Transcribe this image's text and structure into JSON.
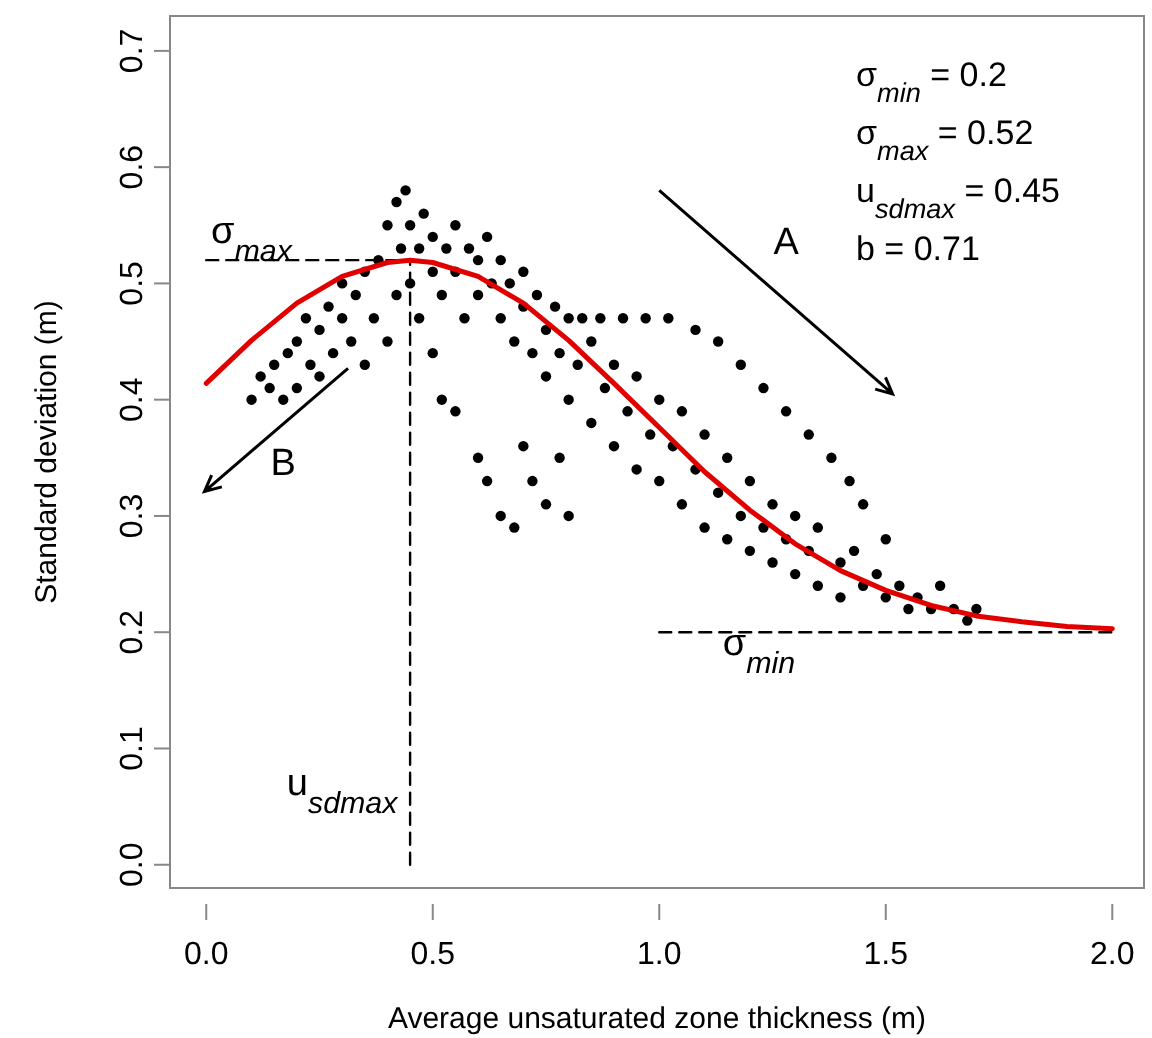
{
  "chart_data": {
    "type": "scatter",
    "xlabel": "Average unsaturated zone thickness (m)",
    "ylabel": "Standard deviation (m)",
    "xlim": [
      -0.08,
      2.07
    ],
    "ylim": [
      -0.02,
      0.73
    ],
    "xticks": [
      {
        "value": 0,
        "label": "0.0"
      },
      {
        "value": 0.5,
        "label": "0.5"
      },
      {
        "value": 1,
        "label": "1.0"
      },
      {
        "value": 1.5,
        "label": "1.5"
      },
      {
        "value": 2,
        "label": "2.0"
      }
    ],
    "yticks": [
      {
        "value": 0,
        "label": "0.0"
      },
      {
        "value": 0.1,
        "label": "0.1"
      },
      {
        "value": 0.2,
        "label": "0.2"
      },
      {
        "value": 0.3,
        "label": "0.3"
      },
      {
        "value": 0.4,
        "label": "0.4"
      },
      {
        "value": 0.5,
        "label": "0.5"
      },
      {
        "value": 0.6,
        "label": "0.6"
      },
      {
        "value": 0.7,
        "label": "0.7"
      }
    ],
    "grid": false,
    "series": [
      {
        "color": "#000000",
        "marker": "circle",
        "x": [
          0.1,
          0.12,
          0.14,
          0.15,
          0.17,
          0.18,
          0.2,
          0.2,
          0.22,
          0.23,
          0.25,
          0.25,
          0.27,
          0.28,
          0.3,
          0.3,
          0.32,
          0.33,
          0.35,
          0.35,
          0.37,
          0.38,
          0.4,
          0.4,
          0.42,
          0.42,
          0.43,
          0.44,
          0.45,
          0.45,
          0.47,
          0.47,
          0.48,
          0.5,
          0.5,
          0.52,
          0.53,
          0.55,
          0.55,
          0.57,
          0.58,
          0.6,
          0.6,
          0.62,
          0.63,
          0.65,
          0.65,
          0.67,
          0.68,
          0.7,
          0.7,
          0.72,
          0.73,
          0.75,
          0.75,
          0.77,
          0.78,
          0.8,
          0.8,
          0.82,
          0.83,
          0.85,
          0.85,
          0.87,
          0.88,
          0.9,
          0.9,
          0.92,
          0.93,
          0.95,
          0.95,
          0.97,
          0.98,
          1.0,
          1.0,
          1.02,
          1.03,
          1.05,
          1.05,
          1.08,
          1.08,
          1.1,
          1.1,
          1.13,
          1.13,
          1.15,
          1.15,
          1.18,
          1.18,
          1.2,
          1.2,
          1.23,
          1.23,
          1.25,
          1.25,
          1.28,
          1.28,
          1.3,
          1.3,
          1.33,
          1.33,
          1.35,
          1.35,
          1.38,
          1.4,
          1.4,
          1.42,
          1.43,
          1.45,
          1.45,
          1.48,
          1.5,
          1.5,
          1.53,
          1.55,
          1.57,
          1.6,
          1.62,
          1.65,
          1.68,
          1.7,
          0.6,
          0.62,
          0.65,
          0.68,
          0.7,
          0.72,
          0.75,
          0.78,
          0.8,
          0.55,
          0.5,
          0.52
        ],
        "values": [
          0.4,
          0.42,
          0.41,
          0.43,
          0.4,
          0.44,
          0.45,
          0.41,
          0.47,
          0.43,
          0.46,
          0.42,
          0.48,
          0.44,
          0.47,
          0.5,
          0.45,
          0.49,
          0.43,
          0.51,
          0.47,
          0.52,
          0.45,
          0.55,
          0.49,
          0.57,
          0.53,
          0.58,
          0.5,
          0.55,
          0.47,
          0.53,
          0.56,
          0.51,
          0.54,
          0.49,
          0.53,
          0.55,
          0.51,
          0.47,
          0.53,
          0.52,
          0.49,
          0.54,
          0.5,
          0.47,
          0.52,
          0.5,
          0.45,
          0.51,
          0.48,
          0.44,
          0.49,
          0.46,
          0.42,
          0.48,
          0.44,
          0.47,
          0.4,
          0.43,
          0.47,
          0.38,
          0.45,
          0.47,
          0.41,
          0.36,
          0.43,
          0.47,
          0.39,
          0.34,
          0.42,
          0.47,
          0.37,
          0.33,
          0.4,
          0.47,
          0.36,
          0.31,
          0.39,
          0.46,
          0.34,
          0.29,
          0.37,
          0.45,
          0.32,
          0.28,
          0.35,
          0.43,
          0.3,
          0.27,
          0.33,
          0.41,
          0.29,
          0.26,
          0.31,
          0.39,
          0.28,
          0.25,
          0.3,
          0.37,
          0.27,
          0.24,
          0.29,
          0.35,
          0.26,
          0.23,
          0.33,
          0.27,
          0.24,
          0.31,
          0.25,
          0.23,
          0.28,
          0.24,
          0.22,
          0.23,
          0.22,
          0.24,
          0.22,
          0.21,
          0.22,
          0.35,
          0.33,
          0.3,
          0.29,
          0.36,
          0.33,
          0.31,
          0.35,
          0.3,
          0.39,
          0.44,
          0.4
        ]
      },
      {
        "type": "line",
        "color": "#000000",
        "line_style": "dashed",
        "x": [
          0,
          0.45
        ],
        "values": [
          0.52,
          0.52
        ]
      },
      {
        "type": "line",
        "color": "#000000",
        "line_style": "dashed",
        "x": [
          0.45,
          0.45
        ],
        "values": [
          0,
          0.52
        ]
      },
      {
        "type": "line",
        "color": "#000000",
        "line_style": "dashed",
        "x": [
          1,
          2
        ],
        "values": [
          0.2,
          0.2
        ]
      },
      {
        "type": "line",
        "color": "#e00000",
        "line_style": "solid",
        "x": [
          0,
          0.1,
          0.2,
          0.3,
          0.4,
          0.45,
          0.5,
          0.6,
          0.7,
          0.8,
          0.9,
          1.0,
          1.1,
          1.2,
          1.3,
          1.4,
          1.5,
          1.6,
          1.7,
          1.8,
          1.9,
          2.0
        ],
        "values": [
          0.414,
          0.451,
          0.483,
          0.506,
          0.518,
          0.52,
          0.518,
          0.506,
          0.483,
          0.451,
          0.414,
          0.376,
          0.338,
          0.305,
          0.276,
          0.253,
          0.236,
          0.223,
          0.214,
          0.209,
          0.205,
          0.203
        ]
      }
    ],
    "annotations": [
      "σ$_{min}$ = 0.2",
      "σ$_{max}$ = 0.52",
      "u$_{sdmax}$ = 0.45",
      "b = 0.71",
      "σ$_{max}$",
      "u$_{sdmax}$",
      "σ$_{min}$",
      "A",
      "B"
    ]
  }
}
